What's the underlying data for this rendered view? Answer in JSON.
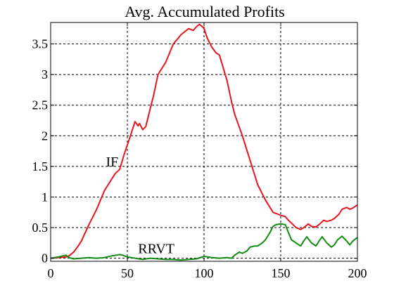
{
  "chart_data": {
    "type": "line",
    "title": "Avg. Accumulated Profits",
    "xlabel": "",
    "ylabel": "",
    "xlim": [
      0,
      200
    ],
    "ylim": [
      -0.05,
      3.85
    ],
    "x_ticks": [
      0,
      50,
      100,
      150,
      200
    ],
    "x_tick_labels": [
      "0",
      "50",
      "100",
      "150",
      "200"
    ],
    "y_ticks": [
      0,
      0.5,
      1,
      1.5,
      2,
      2.5,
      3,
      3.5
    ],
    "y_tick_labels": [
      "0",
      "0.5",
      "1",
      "1.5",
      "2",
      "2.5",
      "3",
      "3.5"
    ],
    "grid": true,
    "legend": "none",
    "series": [
      {
        "name": "IF",
        "color": "#e8141e",
        "x": [
          0,
          5,
          10,
          12,
          15,
          18,
          20,
          25,
          30,
          35,
          40,
          42,
          45,
          48,
          50,
          52,
          55,
          57,
          58,
          60,
          62,
          65,
          67,
          70,
          75,
          80,
          85,
          90,
          93,
          95,
          97,
          99,
          100,
          102,
          105,
          108,
          110,
          112,
          115,
          118,
          120,
          125,
          130,
          135,
          140,
          145,
          150,
          153,
          155,
          158,
          160,
          163,
          165,
          168,
          170,
          173,
          175,
          178,
          180,
          183,
          185,
          188,
          190,
          193,
          195,
          197,
          200
        ],
        "values": [
          0.0,
          0.01,
          0.02,
          0.04,
          0.1,
          0.2,
          0.28,
          0.55,
          0.8,
          1.1,
          1.3,
          1.38,
          1.45,
          1.7,
          1.85,
          2.0,
          2.23,
          2.16,
          2.2,
          2.1,
          2.15,
          2.45,
          2.65,
          3.0,
          3.2,
          3.5,
          3.65,
          3.75,
          3.72,
          3.78,
          3.82,
          3.78,
          3.75,
          3.6,
          3.45,
          3.35,
          3.32,
          3.15,
          2.9,
          2.55,
          2.35,
          2.0,
          1.6,
          1.2,
          0.95,
          0.75,
          0.7,
          0.68,
          0.62,
          0.55,
          0.5,
          0.47,
          0.5,
          0.56,
          0.52,
          0.51,
          0.55,
          0.62,
          0.6,
          0.62,
          0.65,
          0.72,
          0.8,
          0.83,
          0.8,
          0.82,
          0.87
        ]
      },
      {
        "name": "RRVT",
        "color": "#108c10",
        "x": [
          0,
          5,
          8,
          10,
          12,
          15,
          20,
          25,
          30,
          35,
          40,
          43,
          45,
          47,
          50,
          55,
          60,
          65,
          70,
          75,
          80,
          85,
          90,
          95,
          100,
          103,
          105,
          110,
          115,
          118,
          120,
          123,
          125,
          128,
          130,
          133,
          135,
          138,
          140,
          143,
          145,
          147,
          150,
          153,
          155,
          157,
          160,
          163,
          165,
          167,
          170,
          173,
          175,
          177,
          180,
          183,
          185,
          187,
          190,
          193,
          195,
          197,
          200
        ],
        "values": [
          0.0,
          0.02,
          0.04,
          0.05,
          0.01,
          -0.01,
          0.0,
          0.01,
          0.0,
          0.01,
          0.04,
          0.05,
          0.06,
          0.05,
          0.02,
          0.0,
          -0.02,
          0.0,
          -0.01,
          -0.02,
          -0.02,
          -0.03,
          -0.02,
          -0.01,
          0.03,
          0.02,
          0.01,
          0.0,
          0.01,
          0.0,
          0.05,
          0.1,
          0.08,
          0.12,
          0.18,
          0.2,
          0.2,
          0.25,
          0.3,
          0.42,
          0.52,
          0.55,
          0.56,
          0.55,
          0.42,
          0.3,
          0.25,
          0.2,
          0.28,
          0.35,
          0.25,
          0.2,
          0.28,
          0.35,
          0.25,
          0.18,
          0.22,
          0.3,
          0.36,
          0.28,
          0.22,
          0.28,
          0.34
        ]
      }
    ],
    "annotations": [
      {
        "text": "IF",
        "x": 36,
        "y": 1.5
      },
      {
        "text": "RRVT",
        "x": 57,
        "y": 0.08
      }
    ]
  }
}
